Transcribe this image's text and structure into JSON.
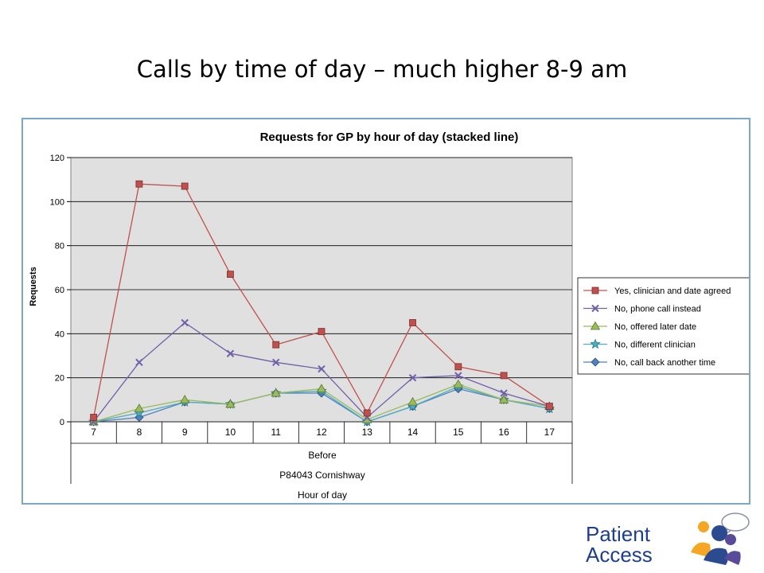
{
  "slide": {
    "title": "Calls by time of day – much higher 8-9 am"
  },
  "logo": {
    "line1": "Patient",
    "line2": "Access",
    "colors": {
      "text": "#1e3f8c",
      "orange": "#f5a623",
      "navy": "#2b4a8f",
      "purple": "#5a4a9a"
    }
  },
  "chart_data": {
    "type": "line",
    "title": "Requests for GP by hour of day (stacked line)",
    "ylabel": "Requests",
    "xlabel": "Hour of day",
    "x_group_labels": [
      "Before",
      "P84043 Cornishway"
    ],
    "categories": [
      "7",
      "8",
      "9",
      "10",
      "11",
      "12",
      "13",
      "14",
      "15",
      "16",
      "17"
    ],
    "ylim": [
      0,
      120
    ],
    "yticks": [
      0,
      20,
      40,
      60,
      80,
      100,
      120
    ],
    "grid": true,
    "legend_position": "right",
    "series": [
      {
        "name": "Yes, clinician and date agreed",
        "color": "#c0504d",
        "marker": "square",
        "values": [
          2,
          108,
          107,
          67,
          35,
          41,
          4,
          45,
          25,
          21,
          7
        ]
      },
      {
        "name": "No, phone call instead",
        "color": "#7060a8",
        "marker": "x",
        "values": [
          0,
          27,
          45,
          31,
          27,
          24,
          2,
          20,
          21,
          13,
          7
        ]
      },
      {
        "name": "No, offered later date",
        "color": "#9bbb59",
        "marker": "triangle",
        "values": [
          0,
          6,
          10,
          8,
          13,
          15,
          1,
          9,
          17,
          10,
          7
        ]
      },
      {
        "name": "No, different clinician",
        "color": "#4bacc6",
        "marker": "star",
        "values": [
          0,
          4,
          9,
          8,
          13,
          14,
          0,
          7,
          16,
          10,
          6
        ]
      },
      {
        "name": "No, call back another time",
        "color": "#4f81bd",
        "marker": "diamond",
        "values": [
          0,
          2,
          9,
          8,
          13,
          13,
          0,
          7,
          15,
          10,
          6
        ]
      }
    ]
  }
}
